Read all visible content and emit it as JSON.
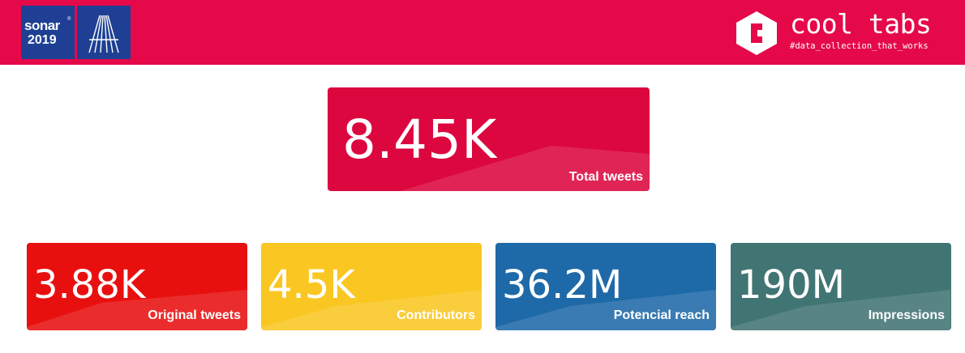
{
  "header": {
    "sonar": {
      "word": "sonar",
      "registered": "®",
      "year": "2019"
    },
    "brand": {
      "name": "cool tabs",
      "tagline": "#data_collection_that_works"
    },
    "color": "#e5094a"
  },
  "main_metric": {
    "value": "8.45K",
    "label": "Total tweets",
    "color": "#dc073f"
  },
  "metrics": [
    {
      "value": "3.88K",
      "label": "Original tweets",
      "color": "#e8100f"
    },
    {
      "value": "4.5K",
      "label": "Contributors",
      "color": "#fac621"
    },
    {
      "value": "36.2M",
      "label": "Potencial reach",
      "color": "#1e69a8"
    },
    {
      "value": "190M",
      "label": "Impressions",
      "color": "#417573"
    }
  ]
}
